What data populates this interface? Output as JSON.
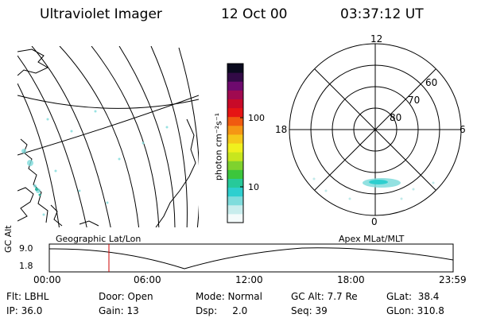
{
  "header": {
    "title": "Ultraviolet Imager",
    "date": "12 Oct 00",
    "time": "03:37:12 UT"
  },
  "colorbar": {
    "unit_label": "photon cm⁻²s⁻¹",
    "ticks": [
      "100",
      "10"
    ],
    "colors": [
      "#f4fbfb",
      "#c8eded",
      "#7fdcdc",
      "#2ecfcf",
      "#27c99a",
      "#3cc63c",
      "#7fd22e",
      "#c8e61e",
      "#f0f01e",
      "#f5c81a",
      "#f59614",
      "#f05a10",
      "#e61414",
      "#c80a28",
      "#a00a50",
      "#6e0a6e",
      "#320a46",
      "#0a0a1e"
    ]
  },
  "geo_panel": {
    "label": "Geographic Lat/Lon"
  },
  "polar_panel": {
    "label": "Apex MLat/MLT",
    "mlt_labels": {
      "top": "12",
      "left": "18",
      "right": "6",
      "bottom": "0"
    },
    "lat_labels": [
      "60",
      "70",
      "80"
    ]
  },
  "timeline": {
    "axis_label": "GC Alt",
    "y_ticks": [
      "9.0",
      "1.8"
    ],
    "x_ticks": [
      "00:00",
      "06:00",
      "12:00",
      "18:00",
      "23:59"
    ],
    "marker_color": "#cc0000"
  },
  "info": {
    "row1": {
      "flt": "Flt: LBHL",
      "door": "Door: Open",
      "mode": "Mode: Normal",
      "gcalt": "GC Alt: 7.7 Re",
      "glat": "GLat:  38.4"
    },
    "row2": {
      "ip": "IP: 36.0",
      "gain": "Gain: 13",
      "dsp": "Dsp:     2.0",
      "seq": "Seq: 39",
      "glon": "GLon: 310.8"
    }
  }
}
